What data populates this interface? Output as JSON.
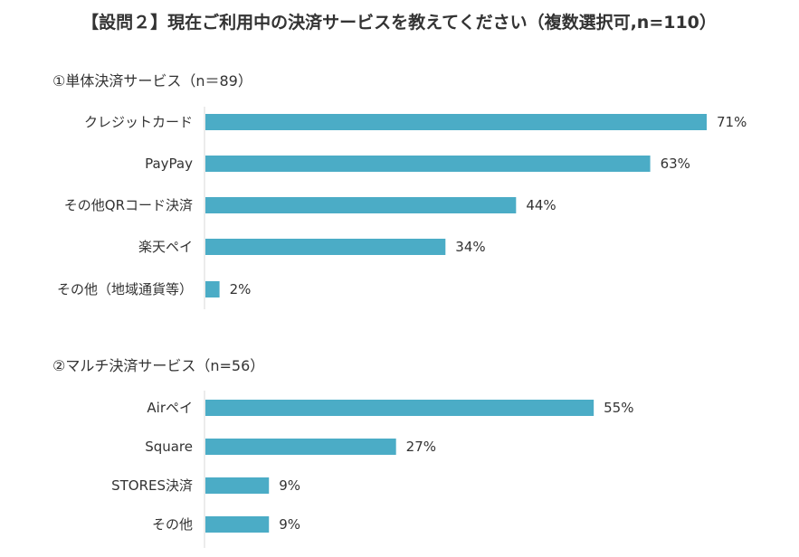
{
  "title": "【設問２】現在ご利用中の決済サービスを教えてください（複数選択可,n=110）",
  "colors": {
    "bar": "#4BACC6",
    "axis": "#d9d9d9",
    "text": "#333333"
  },
  "chart_data": [
    {
      "type": "bar",
      "orientation": "horizontal",
      "title": "①単体決済サービス（n＝89）",
      "categories": [
        "クレジットカード",
        "PayPay",
        "その他QRコード決済",
        "楽天ペイ",
        "その他（地域通貨等）"
      ],
      "values": [
        71,
        63,
        44,
        34,
        2
      ],
      "value_labels": [
        "71%",
        "63%",
        "44%",
        "34%",
        "2%"
      ],
      "unit": "%",
      "xlim": [
        0,
        100
      ],
      "grid": false,
      "legend": "none"
    },
    {
      "type": "bar",
      "orientation": "horizontal",
      "title": "②マルチ決済サービス（n=56）",
      "categories": [
        "Airペイ",
        "Square",
        "STORES決済",
        "その他"
      ],
      "values": [
        55,
        27,
        9,
        9
      ],
      "value_labels": [
        "55%",
        "27%",
        "9%",
        "9%"
      ],
      "unit": "%",
      "xlim": [
        0,
        100
      ],
      "grid": false,
      "legend": "none"
    }
  ]
}
